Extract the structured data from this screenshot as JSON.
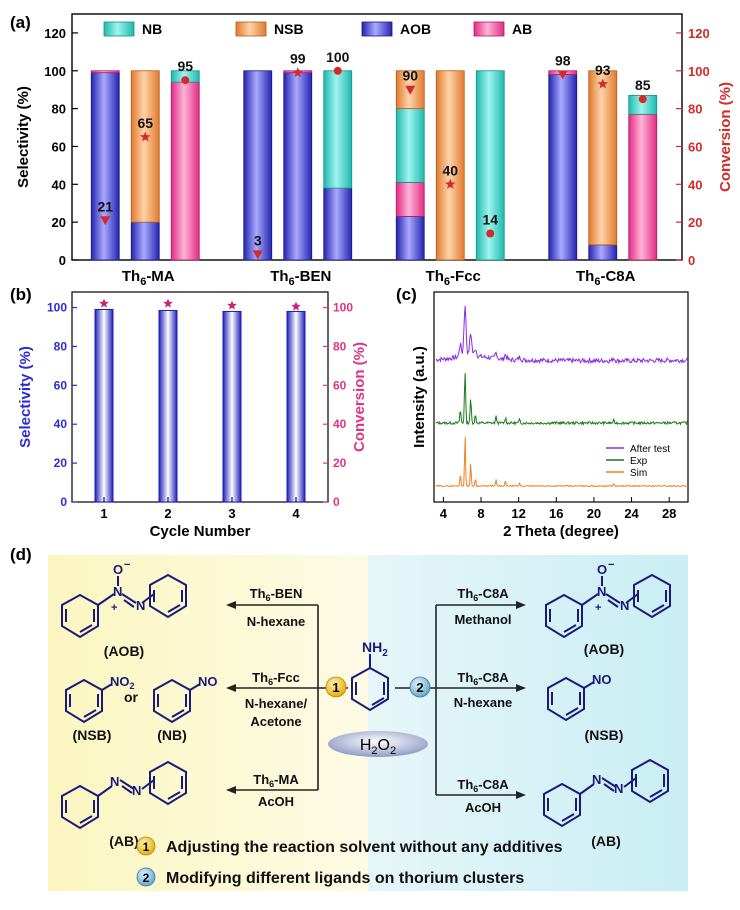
{
  "chart_data": [
    {
      "panel": "(a)",
      "type": "bar",
      "stacked": true,
      "categories": [
        "Th6-MA",
        "Th6-BEN",
        "Th6-Fcc",
        "Th6-C8A"
      ],
      "category_labels": [
        {
          "base": "Th",
          "sub": "6",
          "rest": "-MA"
        },
        {
          "base": "Th",
          "sub": "6",
          "rest": "-BEN"
        },
        {
          "base": "Th",
          "sub": "6",
          "rest": "-Fcc"
        },
        {
          "base": "Th",
          "sub": "6",
          "rest": "-C8A"
        }
      ],
      "ylabel": "Selectivity (%)",
      "y2label": "Conversion (%)",
      "ylim": [
        0,
        130
      ],
      "yticks": [
        0,
        20,
        40,
        60,
        80,
        100,
        120
      ],
      "legend": [
        {
          "name": "NB",
          "color": "#40dcd0"
        },
        {
          "name": "NSB",
          "color": "#f39c58"
        },
        {
          "name": "AOB",
          "color": "#3a3ad0"
        },
        {
          "name": "AB",
          "color": "#f24a98"
        }
      ],
      "bars": [
        {
          "group": 0,
          "segments": [
            {
              "s": "AOB",
              "v": 99
            },
            {
              "s": "AB",
              "v": 1
            }
          ]
        },
        {
          "group": 0,
          "segments": [
            {
              "s": "AOB",
              "v": 20
            },
            {
              "s": "NSB",
              "v": 80
            }
          ]
        },
        {
          "group": 0,
          "segments": [
            {
              "s": "AB",
              "v": 94
            },
            {
              "s": "NB",
              "v": 6
            }
          ]
        },
        {
          "group": 1,
          "segments": [
            {
              "s": "AOB",
              "v": 100
            }
          ]
        },
        {
          "group": 1,
          "segments": [
            {
              "s": "AOB",
              "v": 99
            },
            {
              "s": "AB",
              "v": 1
            }
          ]
        },
        {
          "group": 1,
          "segments": [
            {
              "s": "AOB",
              "v": 38
            },
            {
              "s": "NB",
              "v": 62
            }
          ]
        },
        {
          "group": 2,
          "segments": [
            {
              "s": "AOB",
              "v": 23
            },
            {
              "s": "AB",
              "v": 18
            },
            {
              "s": "NB",
              "v": 39
            },
            {
              "s": "NSB",
              "v": 20
            }
          ]
        },
        {
          "group": 2,
          "segments": [
            {
              "s": "NSB",
              "v": 100
            }
          ]
        },
        {
          "group": 2,
          "segments": [
            {
              "s": "NB",
              "v": 100
            }
          ]
        },
        {
          "group": 3,
          "segments": [
            {
              "s": "AOB",
              "v": 98
            },
            {
              "s": "AB",
              "v": 2
            }
          ]
        },
        {
          "group": 3,
          "segments": [
            {
              "s": "AOB",
              "v": 8
            },
            {
              "s": "NSB",
              "v": 92
            }
          ]
        },
        {
          "group": 3,
          "segments": [
            {
              "s": "AB",
              "v": 77
            },
            {
              "s": "NB",
              "v": 10
            }
          ]
        }
      ],
      "conversion_markers": [
        {
          "bar": 0,
          "value": 21,
          "label": "21",
          "shape": "triangle"
        },
        {
          "bar": 1,
          "value": 65,
          "label": "65",
          "shape": "star"
        },
        {
          "bar": 2,
          "value": 95,
          "label": "95",
          "shape": "circle"
        },
        {
          "bar": 3,
          "value": 3,
          "label": "3",
          "shape": "triangle"
        },
        {
          "bar": 4,
          "value": 99,
          "label": "99",
          "shape": "star"
        },
        {
          "bar": 5,
          "value": 100,
          "label": "100",
          "shape": "circle"
        },
        {
          "bar": 6,
          "value": 90,
          "label": "90",
          "shape": "triangle"
        },
        {
          "bar": 7,
          "value": 40,
          "label": "40",
          "shape": "star"
        },
        {
          "bar": 8,
          "value": 14,
          "label": "14",
          "shape": "circle"
        },
        {
          "bar": 9,
          "value": 98,
          "label": "98",
          "shape": "triangle"
        },
        {
          "bar": 10,
          "value": 93,
          "label": "93",
          "shape": "star"
        },
        {
          "bar": 11,
          "value": 85,
          "label": "85",
          "shape": "circle"
        }
      ]
    },
    {
      "panel": "(b)",
      "type": "bar",
      "xlabel": "Cycle Number",
      "ylabel": "Selectivity (%)",
      "y2label": "Conversion (%)",
      "categories": [
        "1",
        "2",
        "3",
        "4"
      ],
      "ylim": [
        0,
        108
      ],
      "yticks": [
        0,
        20,
        40,
        60,
        80,
        100
      ],
      "selectivity": [
        99,
        98.5,
        98,
        98
      ],
      "conversion": [
        100,
        100,
        99,
        98.5
      ]
    },
    {
      "panel": "(c)",
      "type": "line",
      "xlabel": "2 Theta (degree)",
      "ylabel": "Intensity (a.u.)",
      "xlim": [
        3,
        30
      ],
      "xticks": [
        4,
        8,
        12,
        16,
        20,
        24,
        28
      ],
      "series": [
        {
          "name": "After test",
          "color": "#8a2be2"
        },
        {
          "name": "Exp",
          "color": "#1a7a1a"
        },
        {
          "name": "Sim",
          "color": "#f08020"
        }
      ]
    }
  ],
  "panel_d": {
    "label": "(d)",
    "center": {
      "nh2": "NH",
      "nh2_sub": "2",
      "oxidant": "H",
      "oxidant_sub": "2",
      "oxidant_rest": "O",
      "oxidant_sub2": "2"
    },
    "left": [
      {
        "cat_base": "Th",
        "cat_sub": "6",
        "cat_rest": "-BEN",
        "solvent": "N-hexane",
        "product": "(AOB)"
      },
      {
        "cat_base": "Th",
        "cat_sub": "6",
        "cat_rest": "-Fcc",
        "solvent1": "N-hexane/",
        "solvent2": "Acetone",
        "product": "(NSB)",
        "or": "or",
        "product2": "(NB)"
      },
      {
        "cat_base": "Th",
        "cat_sub": "6",
        "cat_rest": "-MA",
        "solvent": "AcOH",
        "product": "(AB)"
      }
    ],
    "right": [
      {
        "cat_base": "Th",
        "cat_sub": "6",
        "cat_rest": "-C8A",
        "solvent": "Methanol",
        "product": "(AOB)"
      },
      {
        "cat_base": "Th",
        "cat_sub": "6",
        "cat_rest": "-C8A",
        "solvent": "N-hexane",
        "product": "(NSB)"
      },
      {
        "cat_base": "Th",
        "cat_sub": "6",
        "cat_rest": "-C8A",
        "solvent": "AcOH",
        "product": "(AB)"
      }
    ],
    "atoms": {
      "no2": "NO",
      "no2_sub": "2",
      "no": "NO",
      "n": "N",
      "o": "O",
      "minus": "−",
      "plus": "+"
    },
    "route_badges": [
      "1",
      "2"
    ],
    "notes": [
      {
        "num": "1",
        "text": "Adjusting the reaction solvent without any additives"
      },
      {
        "num": "2",
        "text": "Modifying different ligands on thorium clusters"
      }
    ]
  },
  "colors": {
    "accent_red": "#d42a2a",
    "navy": "#1a1a7a",
    "bar_blue": "#3a3ad0",
    "pink": "#e0357e"
  }
}
